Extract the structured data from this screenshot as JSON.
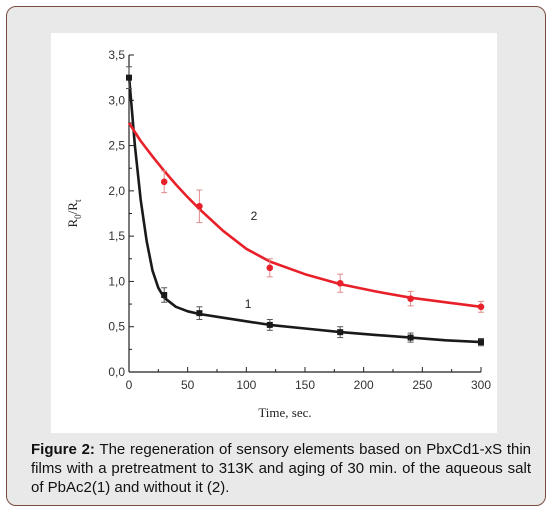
{
  "caption": {
    "label": "Figure 2:",
    "text": " The regeneration of  sensory elements based on PbxCd1-xS thin films with a pretreatment to 313K and aging of 30 min. of the aqueous salt of PbAc2(1) and without it (2)."
  },
  "chart_data": {
    "type": "scatter",
    "title": "",
    "xlabel": "Time, sec.",
    "ylabel": "R0/Rt",
    "ylabel_main": "R",
    "ylabel_sub0": "0",
    "ylabel_sep": "/R",
    "ylabel_subt": "t",
    "xlim": [
      0,
      300
    ],
    "ylim": [
      0,
      3.5
    ],
    "x_ticks": [
      0,
      50,
      100,
      150,
      200,
      250,
      300
    ],
    "x_tick_labels": [
      "0",
      "50",
      "100",
      "150",
      "200",
      "250",
      "300"
    ],
    "y_ticks": [
      0,
      0.5,
      1.0,
      1.5,
      2.0,
      2.5,
      3.0,
      3.5
    ],
    "y_tick_labels": [
      "0,0",
      "0,5",
      "1,0",
      "1,5",
      "2,0",
      "2,5",
      "3,0",
      "3,5"
    ],
    "grid": false,
    "series": [
      {
        "name": "1",
        "color": "#1a1a1a",
        "marker": "square",
        "points": [
          {
            "x": 0,
            "y": 3.25,
            "err": 0.12
          },
          {
            "x": 30,
            "y": 0.85,
            "err": 0.08
          },
          {
            "x": 60,
            "y": 0.65,
            "err": 0.07
          },
          {
            "x": 120,
            "y": 0.52,
            "err": 0.06
          },
          {
            "x": 180,
            "y": 0.44,
            "err": 0.06
          },
          {
            "x": 240,
            "y": 0.38,
            "err": 0.05
          },
          {
            "x": 300,
            "y": 0.33,
            "err": 0.04
          }
        ],
        "fit": [
          [
            0,
            3.27
          ],
          [
            5,
            2.5
          ],
          [
            10,
            1.9
          ],
          [
            15,
            1.45
          ],
          [
            20,
            1.12
          ],
          [
            25,
            0.93
          ],
          [
            30,
            0.82
          ],
          [
            40,
            0.72
          ],
          [
            50,
            0.67
          ],
          [
            60,
            0.64
          ],
          [
            80,
            0.6
          ],
          [
            100,
            0.56
          ],
          [
            120,
            0.52
          ],
          [
            150,
            0.48
          ],
          [
            180,
            0.44
          ],
          [
            210,
            0.41
          ],
          [
            240,
            0.38
          ],
          [
            270,
            0.35
          ],
          [
            300,
            0.33
          ]
        ]
      },
      {
        "name": "2",
        "color": "#e8202a",
        "marker": "circle",
        "points": [
          {
            "x": 30,
            "y": 2.1,
            "err": 0.12
          },
          {
            "x": 60,
            "y": 1.83,
            "err": 0.18
          },
          {
            "x": 120,
            "y": 1.15,
            "err": 0.1
          },
          {
            "x": 180,
            "y": 0.98,
            "err": 0.1
          },
          {
            "x": 240,
            "y": 0.81,
            "err": 0.08
          },
          {
            "x": 300,
            "y": 0.72,
            "err": 0.06
          }
        ],
        "fit": [
          [
            0,
            2.75
          ],
          [
            10,
            2.55
          ],
          [
            20,
            2.38
          ],
          [
            30,
            2.22
          ],
          [
            40,
            2.07
          ],
          [
            50,
            1.93
          ],
          [
            60,
            1.8
          ],
          [
            80,
            1.56
          ],
          [
            100,
            1.36
          ],
          [
            120,
            1.22
          ],
          [
            150,
            1.08
          ],
          [
            180,
            0.97
          ],
          [
            210,
            0.89
          ],
          [
            240,
            0.82
          ],
          [
            270,
            0.77
          ],
          [
            300,
            0.72
          ]
        ]
      }
    ],
    "annotations": [
      {
        "text": "1",
        "x": 85,
        "y": 0.75
      },
      {
        "text": "2",
        "x": 90,
        "y": 1.72
      }
    ]
  }
}
